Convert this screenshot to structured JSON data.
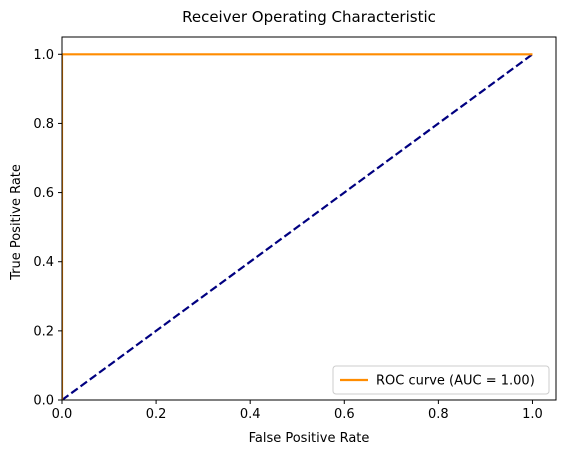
{
  "chart_data": {
    "type": "line",
    "title": "Receiver Operating Characteristic",
    "xlabel": "False Positive Rate",
    "ylabel": "True Positive Rate",
    "xlim": [
      0.0,
      1.05
    ],
    "ylim": [
      0.0,
      1.05
    ],
    "xticks": [
      0.0,
      0.2,
      0.4,
      0.6,
      0.8,
      1.0
    ],
    "yticks": [
      0.0,
      0.2,
      0.4,
      0.6,
      0.8,
      1.0
    ],
    "xtick_labels": [
      "0.0",
      "0.2",
      "0.4",
      "0.6",
      "0.8",
      "1.0"
    ],
    "ytick_labels": [
      "0.0",
      "0.2",
      "0.4",
      "0.6",
      "0.8",
      "1.0"
    ],
    "grid": false,
    "legend_position": "bottom-right",
    "series": [
      {
        "name": "ROC curve (AUC = 1.00)",
        "color": "#ff8c00",
        "style": "solid",
        "x": [
          0.0,
          0.0,
          0.0,
          1.0
        ],
        "y": [
          0.0,
          0.0,
          1.0,
          1.0
        ]
      },
      {
        "color": "#000080",
        "style": "dashed",
        "x": [
          0.0,
          1.0
        ],
        "y": [
          0.0,
          1.0
        ]
      }
    ]
  }
}
